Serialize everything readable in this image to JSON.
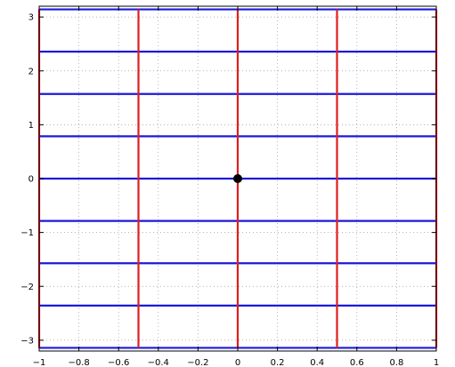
{
  "chart_data": {
    "type": "line",
    "xlim": [
      -1,
      1
    ],
    "ylim": [
      -3.2,
      3.2
    ],
    "grid": true,
    "x_ticks": [
      -1,
      -0.8,
      -0.6,
      -0.4,
      -0.2,
      0,
      0.2,
      0.4,
      0.6,
      0.8,
      1
    ],
    "x_tick_labels": [
      "−1",
      "−0.8",
      "−0.6",
      "−0.4",
      "−0.2",
      "0",
      "0.2",
      "0.4",
      "0.6",
      "0.8",
      "1"
    ],
    "y_ticks": [
      -3,
      -2,
      -1,
      0,
      1,
      2,
      3
    ],
    "y_tick_labels": [
      "−3",
      "−2",
      "−1",
      "0",
      "1",
      "2",
      "3"
    ],
    "horizontal_lines": {
      "color": "#1a1adc",
      "y": [
        -3.1416,
        -2.3562,
        -1.5708,
        -0.7854,
        0,
        0.7854,
        1.5708,
        2.3562,
        3.1416
      ],
      "x_range": [
        -1,
        1
      ]
    },
    "vertical_lines": {
      "color": "#e01e1e",
      "x": [
        -1,
        -0.5,
        0,
        0.5,
        1
      ],
      "y_range": [
        -3.1416,
        3.1416
      ]
    },
    "points": [
      {
        "x": 0,
        "y": 0,
        "color": "#000000"
      }
    ]
  }
}
